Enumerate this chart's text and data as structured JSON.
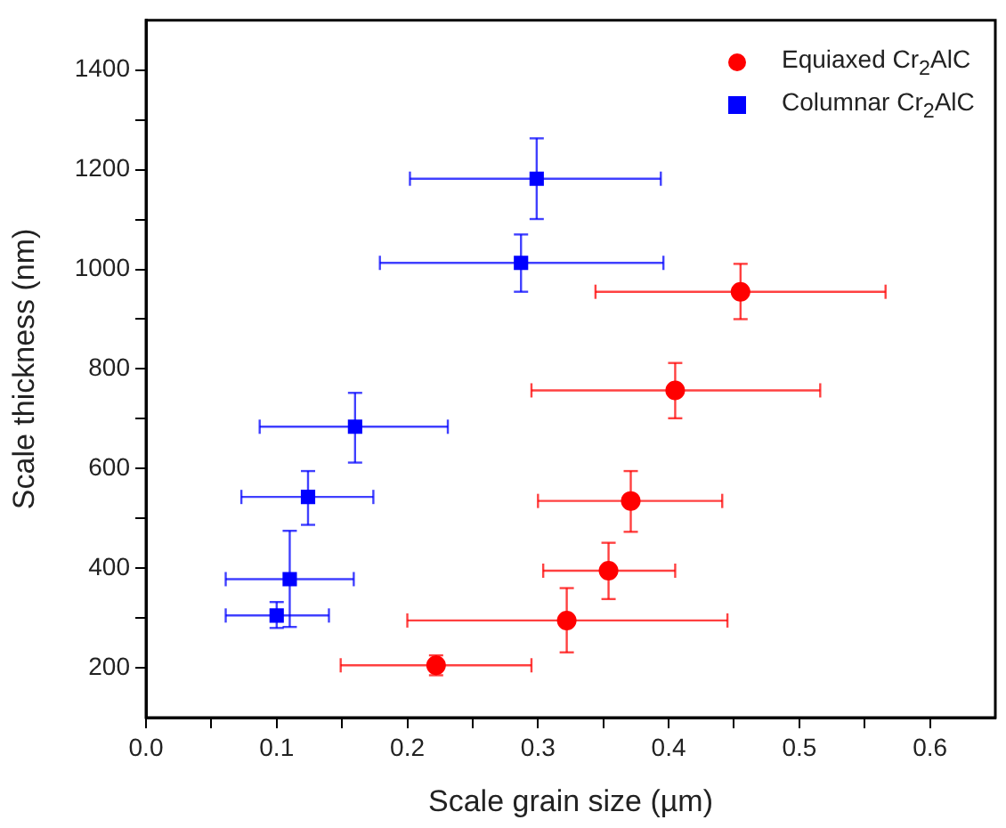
{
  "chart_data": {
    "type": "scatter",
    "xlabel": "Scale grain size (µm)",
    "ylabel": "Scale thickness (nm)",
    "xlim": [
      0,
      0.65
    ],
    "ylim": [
      100,
      1500
    ],
    "xticks": [
      {
        "value": 0,
        "label": "0.0"
      },
      {
        "value": 0.05,
        "label": null
      },
      {
        "value": 0.1,
        "label": "0.1"
      },
      {
        "value": 0.15,
        "label": null
      },
      {
        "value": 0.2,
        "label": "0.2"
      },
      {
        "value": 0.25,
        "label": null
      },
      {
        "value": 0.3,
        "label": "0.3"
      },
      {
        "value": 0.35,
        "label": null
      },
      {
        "value": 0.4,
        "label": "0.4"
      },
      {
        "value": 0.45,
        "label": null
      },
      {
        "value": 0.5,
        "label": "0.5"
      },
      {
        "value": 0.55,
        "label": null
      },
      {
        "value": 0.6,
        "label": "0.6"
      }
    ],
    "yticks": [
      200,
      {
        "value": 300,
        "label": null
      },
      400,
      {
        "value": 500,
        "label": null
      },
      600,
      {
        "value": 700,
        "label": null
      },
      800,
      {
        "value": 900,
        "label": null
      },
      1000,
      {
        "value": 1100,
        "label": null
      },
      1200,
      {
        "value": 1300,
        "label": null
      },
      1400
    ],
    "grid": false,
    "legend": "top right",
    "series": [
      {
        "name": "Equiaxed Cr$_{2}$AlC",
        "color": "#ff0000",
        "marker": "circle",
        "x": [
          0.222,
          0.322,
          0.354,
          0.371,
          0.405,
          0.455
        ],
        "values": [
          205,
          295,
          395,
          535,
          757,
          955
        ],
        "xerrors": [
          [
            0.149,
            0.295
          ],
          [
            0.2,
            0.445
          ],
          [
            0.304,
            0.405
          ],
          [
            0.3,
            0.441
          ],
          [
            0.295,
            0.516
          ],
          [
            0.344,
            0.566
          ]
        ],
        "errors": [
          [
            185,
            225
          ],
          [
            231,
            360
          ],
          [
            338,
            451
          ],
          [
            473,
            595
          ],
          [
            701,
            812
          ],
          [
            900,
            1011
          ]
        ]
      },
      {
        "name": "Columnar Cr$_{2}$AlC",
        "color": "#0000ff",
        "marker": "square",
        "x": [
          0.1,
          0.11,
          0.124,
          0.16,
          0.287,
          0.299
        ],
        "values": [
          305,
          378,
          543,
          684,
          1013,
          1182
        ],
        "xerrors": [
          [
            0.061,
            0.14
          ],
          [
            0.061,
            0.159
          ],
          [
            0.073,
            0.174
          ],
          [
            0.087,
            0.231
          ],
          [
            0.179,
            0.396
          ],
          [
            0.202,
            0.394
          ]
        ],
        "errors": [
          [
            280,
            332
          ],
          [
            282,
            475
          ],
          [
            487,
            595
          ],
          [
            612,
            752
          ],
          [
            955,
            1070
          ],
          [
            1101,
            1263
          ]
        ]
      }
    ]
  }
}
